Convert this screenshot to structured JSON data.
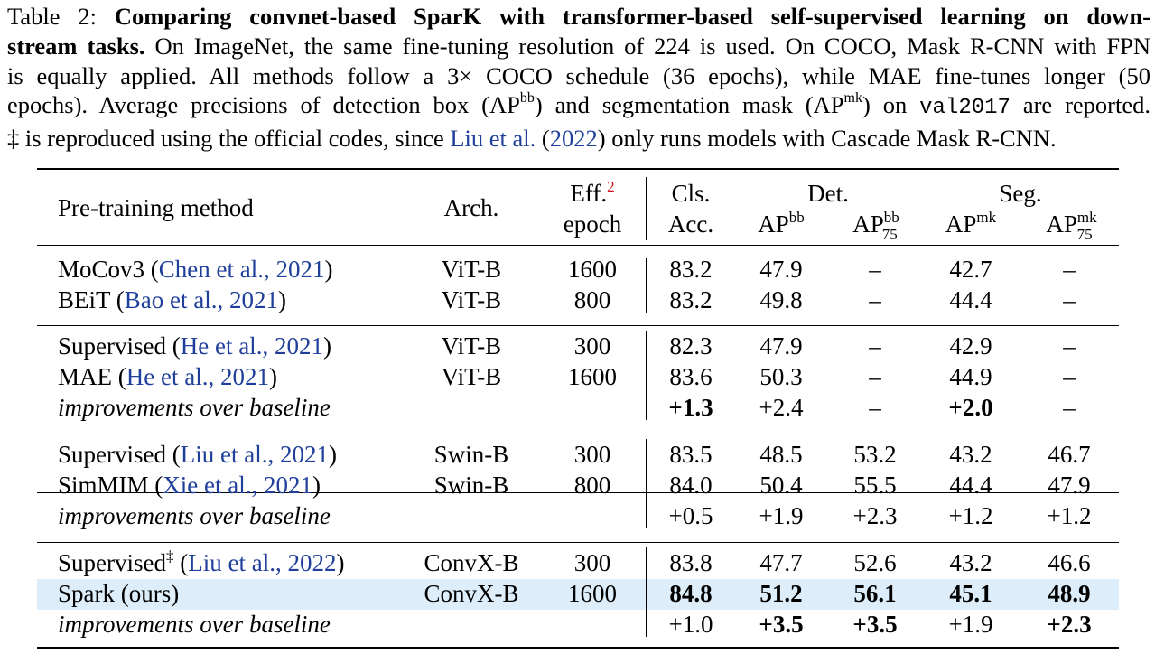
{
  "caption": {
    "label": "Table 2:",
    "bold_title": "Comparing convnet-based SparK with transformer-based self-supervised learning on down-stream tasks.",
    "line2_rest": "On ImageNet, the same fine-tuning resolution of 224 is used. On COCO, Mask R-CNN with FPN",
    "line3": "is equally applied. All methods follow a 3× COCO schedule (36 epochs), while MAE fine-tunes longer (50",
    "line4_a": "epochs). Average precisions of detection box (AP",
    "line4_sup_bb": "bb",
    "line4_b": ") and segmentation mask (AP",
    "line4_sup_mk": "mk",
    "line4_c": ") on ",
    "line4_code": "val2017",
    "line4_d": " are reported.",
    "line5_a": "‡ is reproduced using the official codes, since ",
    "line5_link": "Liu et al.",
    "line5_year": "(2022)",
    "line5_b": " only runs models with Cascade Mask R-CNN."
  },
  "table": {
    "header": {
      "method": "Pre-training method",
      "arch": "Arch.",
      "eff_line1": "Eff.",
      "eff_footnote": "2",
      "eff_line2": "epoch",
      "cls_line1": "Cls.",
      "cls_line2": "Acc.",
      "det": "Det.",
      "seg": "Seg.",
      "ap": "AP",
      "bb": "bb",
      "mk": "mk",
      "sub75": "75"
    },
    "rows": [
      {
        "method": "MoCov3",
        "cite": "Chen et al., 2021",
        "arch": "ViT-B",
        "epoch": "1600",
        "cls": "83.2",
        "apbb": "47.9",
        "apbb75": "–",
        "apmk": "42.7",
        "apmk75": "–"
      },
      {
        "method": "BEiT",
        "cite": "Bao et al., 2021",
        "arch": "ViT-B",
        "epoch": "800",
        "cls": "83.2",
        "apbb": "49.8",
        "apbb75": "–",
        "apmk": "44.4",
        "apmk75": "–"
      },
      {
        "method": "Supervised",
        "cite": "He et al., 2021",
        "arch": "ViT-B",
        "epoch": "300",
        "cls": "82.3",
        "apbb": "47.9",
        "apbb75": "–",
        "apmk": "42.9",
        "apmk75": "–"
      },
      {
        "method": "MAE",
        "cite": "He et al., 2021",
        "arch": "ViT-B",
        "epoch": "1600",
        "cls": "83.6",
        "apbb": "50.3",
        "apbb75": "–",
        "apmk": "44.9",
        "apmk75": "–"
      },
      {
        "method": "improvements over baseline",
        "cls": "+1.3",
        "apbb": "+2.4",
        "apbb75": "–",
        "apmk": "+2.0",
        "apmk75": "–"
      },
      {
        "method": "Supervised",
        "cite": "Liu et al., 2021",
        "arch": "Swin-B",
        "epoch": "300",
        "cls": "83.5",
        "apbb": "48.5",
        "apbb75": "53.2",
        "apmk": "43.2",
        "apmk75": "46.7"
      },
      {
        "method": "SimMIM",
        "cite": "Xie et al., 2021",
        "arch": "Swin-B",
        "epoch": "800",
        "cls": "84.0",
        "apbb": "50.4",
        "apbb75": "55.5",
        "apmk": "44.4",
        "apmk75": "47.9"
      },
      {
        "method": "improvements over baseline",
        "cls": "+0.5",
        "apbb": "+1.9",
        "apbb75": "+2.3",
        "apmk": "+1.2",
        "apmk75": "+1.2"
      },
      {
        "method": "Supervised",
        "dagger": "‡",
        "cite_author": "Liu et al.,",
        "cite_year": "2022",
        "arch": "ConvX-B",
        "epoch": "300",
        "cls": "83.8",
        "apbb": "47.7",
        "apbb75": "52.6",
        "apmk": "43.2",
        "apmk75": "46.6"
      },
      {
        "method": "Spark (ours)",
        "arch": "ConvX-B",
        "epoch": "1600",
        "cls": "84.8",
        "apbb": "51.2",
        "apbb75": "56.1",
        "apmk": "45.1",
        "apmk75": "48.9"
      },
      {
        "method": "improvements over baseline",
        "cls": "+1.0",
        "apbb": "+3.5",
        "apbb75": "+3.5",
        "apmk": "+1.9",
        "apmk75": "+2.3"
      }
    ]
  },
  "colors": {
    "link": "#1f3f9a",
    "highlight_row": "#ddeefa",
    "footnote_red": "#d4141c"
  }
}
